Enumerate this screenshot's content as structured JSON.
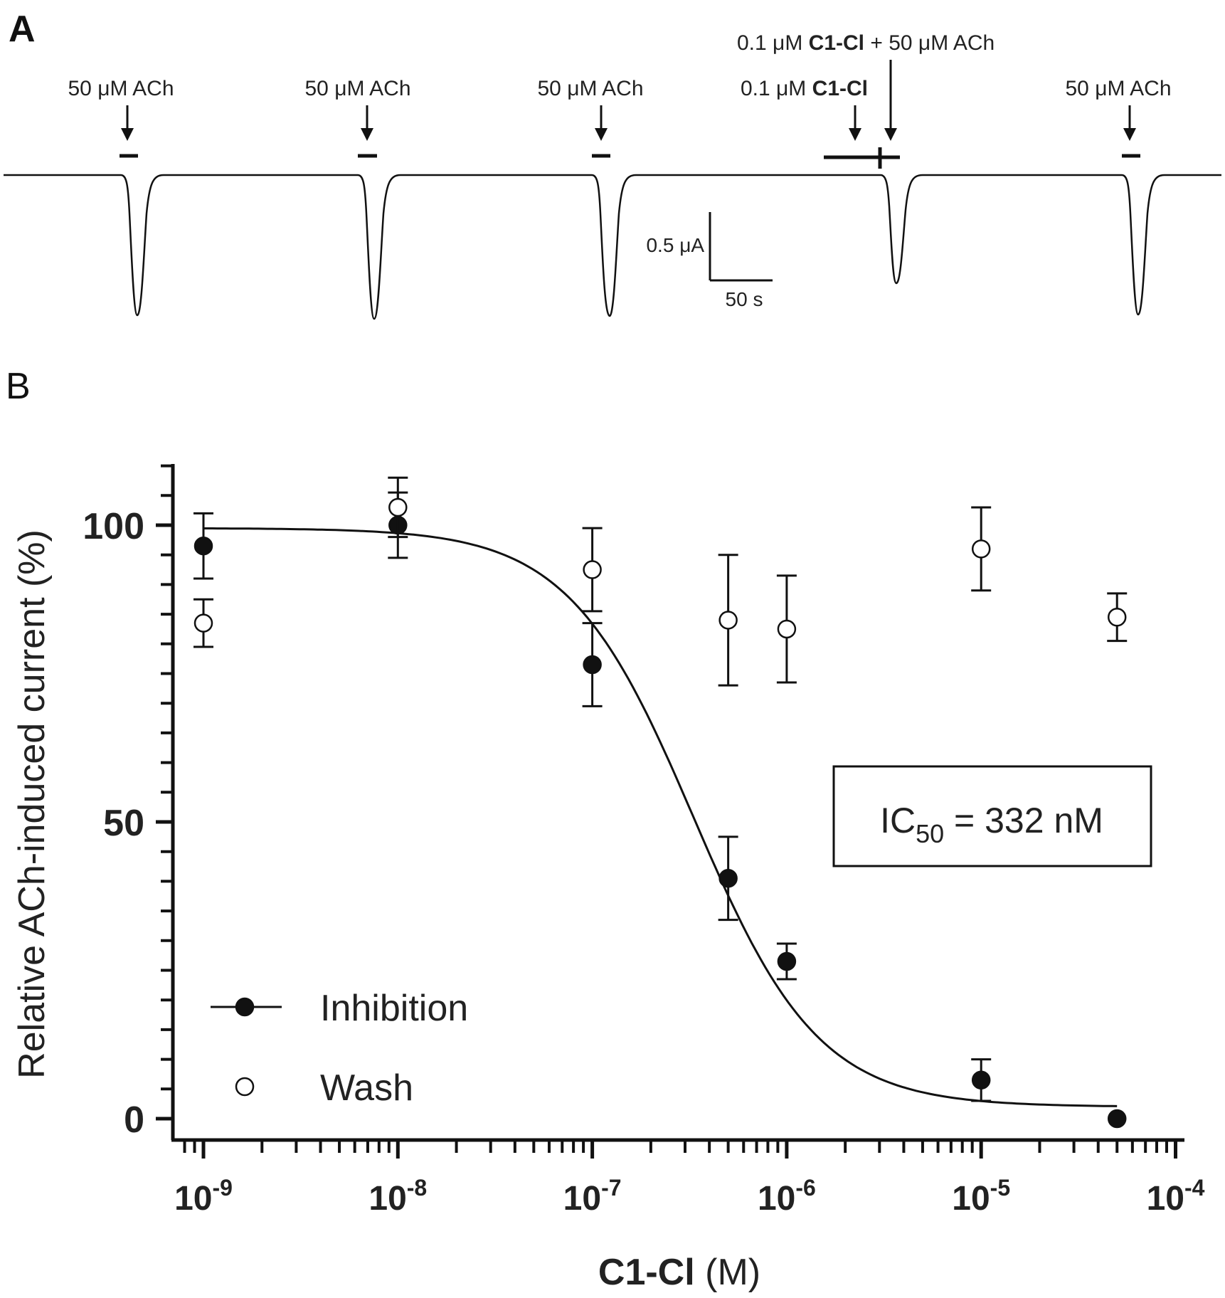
{
  "panel_a": {
    "letter": "A",
    "app_50": "50 μM ACh",
    "app_c1cl_prefix": "0.1 μM",
    "app_c1cl_name": "C1-Cl",
    "app_combo_suffix": "+ 50 μM ACh",
    "scale_current": "0.5 μA",
    "scale_time": "50 s"
  },
  "panel_b": {
    "letter": "B",
    "ic50_prefix": "IC",
    "ic50_sub": "50",
    "ic50_value": " = 332 nM"
  },
  "chart_data": {
    "type": "scatter",
    "xscale": "log",
    "xlim": [
      1e-09,
      0.0001
    ],
    "ylim": [
      0,
      110
    ],
    "xlabel_bold": "C1-Cl",
    "xlabel_rest": " (M)",
    "ylabel": "Relative ACh-induced current (%)",
    "x_tick_labels": [
      {
        "x": 1e-09,
        "base": "10",
        "exp": "-9"
      },
      {
        "x": 1e-08,
        "base": "10",
        "exp": "-8"
      },
      {
        "x": 1e-07,
        "base": "10",
        "exp": "-7"
      },
      {
        "x": 1e-06,
        "base": "10",
        "exp": "-6"
      },
      {
        "x": 1e-05,
        "base": "10",
        "exp": "-5"
      },
      {
        "x": 0.0001,
        "base": "10",
        "exp": "-4"
      }
    ],
    "y_tick_labels": [
      {
        "y": 0,
        "label": "0"
      },
      {
        "y": 50,
        "label": "50"
      },
      {
        "y": 100,
        "label": "100"
      }
    ],
    "series": [
      {
        "name": "Inhibition",
        "marker": "filled",
        "x": [
          1e-09,
          1e-08,
          1e-07,
          5e-07,
          1e-06,
          1e-05,
          5e-05
        ],
        "y": [
          96.5,
          100,
          76.5,
          40.5,
          26.5,
          6.5,
          0
        ],
        "err": [
          5.5,
          5.5,
          7,
          7,
          3,
          3.5,
          0
        ]
      },
      {
        "name": "Wash",
        "marker": "open",
        "x": [
          1e-09,
          1e-08,
          1e-07,
          5e-07,
          1e-06,
          1e-05,
          5e-05
        ],
        "y": [
          83.5,
          103,
          92.5,
          84,
          82.5,
          96,
          84.5
        ],
        "err": [
          4,
          5,
          7,
          11,
          9,
          7,
          4
        ]
      }
    ],
    "fit": {
      "series": "Inhibition",
      "top": 99.5,
      "bottom": 2,
      "ic50": 3.32e-07,
      "hill": 1.35,
      "xrange": [
        1e-09,
        5e-05
      ]
    },
    "legend_position": "bottom-left"
  }
}
